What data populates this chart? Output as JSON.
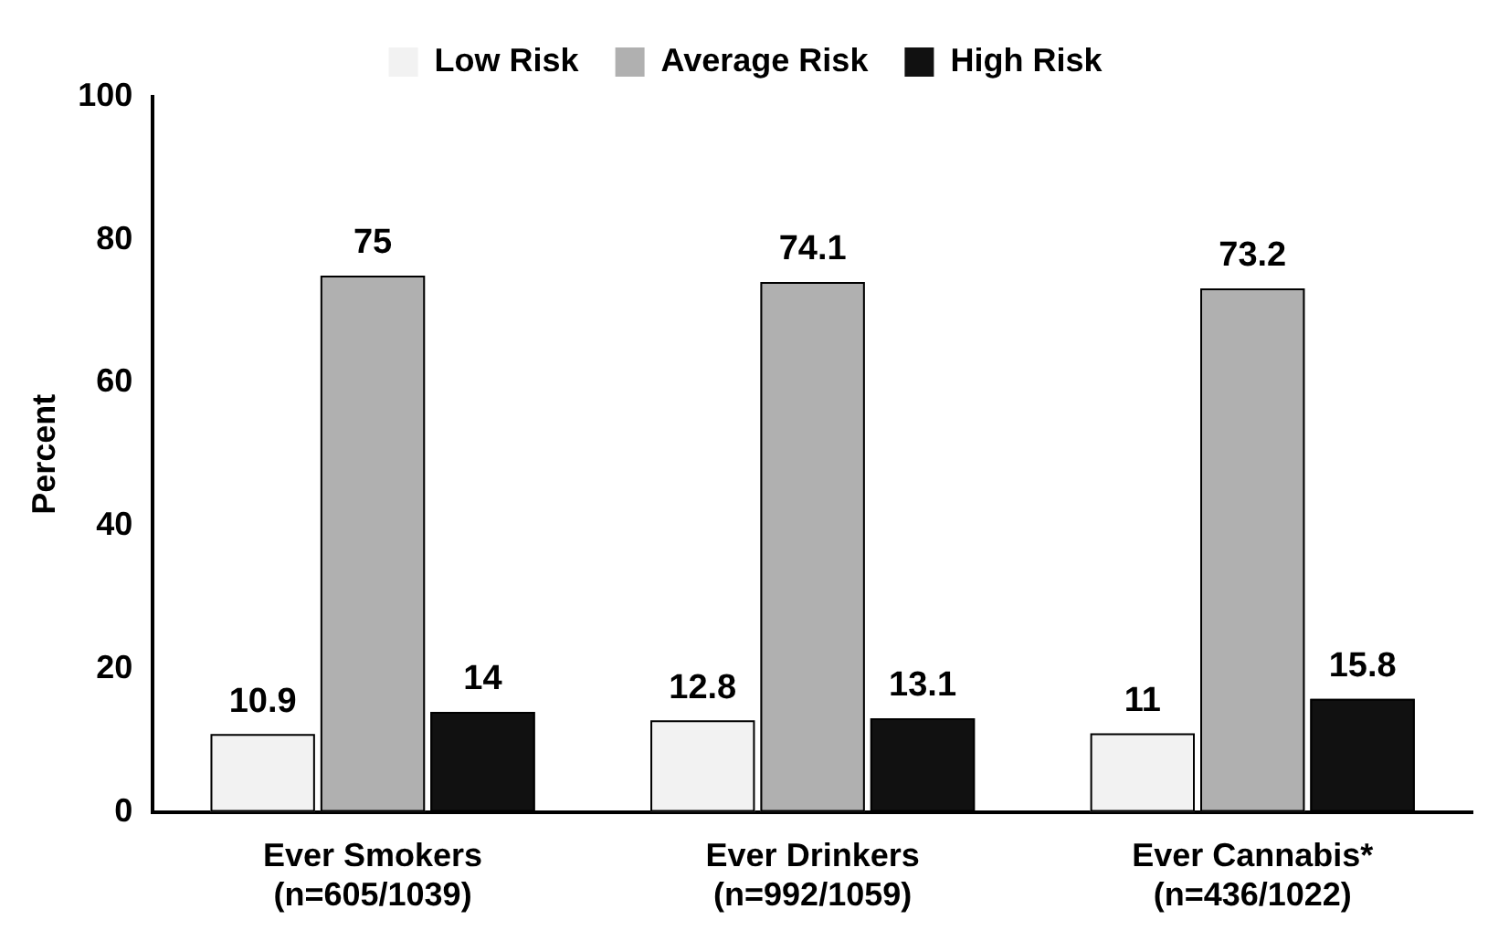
{
  "chart_data": {
    "type": "bar",
    "ylabel": "Percent",
    "categories": [
      "Ever Smokers\n(n=605/1039)",
      "Ever Drinkers\n(n=992/1059)",
      "Ever Cannabis*\n(n=436/1022)"
    ],
    "series": [
      {
        "name": "Low Risk",
        "color": "#f2f2f2",
        "values": [
          10.9,
          12.8,
          11
        ]
      },
      {
        "name": "Average Risk",
        "color": "#b0b0b0",
        "values": [
          75,
          74.1,
          73.2
        ]
      },
      {
        "name": "High Risk",
        "color": "#111111",
        "values": [
          14,
          13.1,
          15.8
        ]
      }
    ],
    "ylim": [
      0,
      100
    ],
    "yticks": [
      0,
      20,
      40,
      60,
      80,
      100
    ],
    "grid": false,
    "legend": "top",
    "data_labels": true
  }
}
